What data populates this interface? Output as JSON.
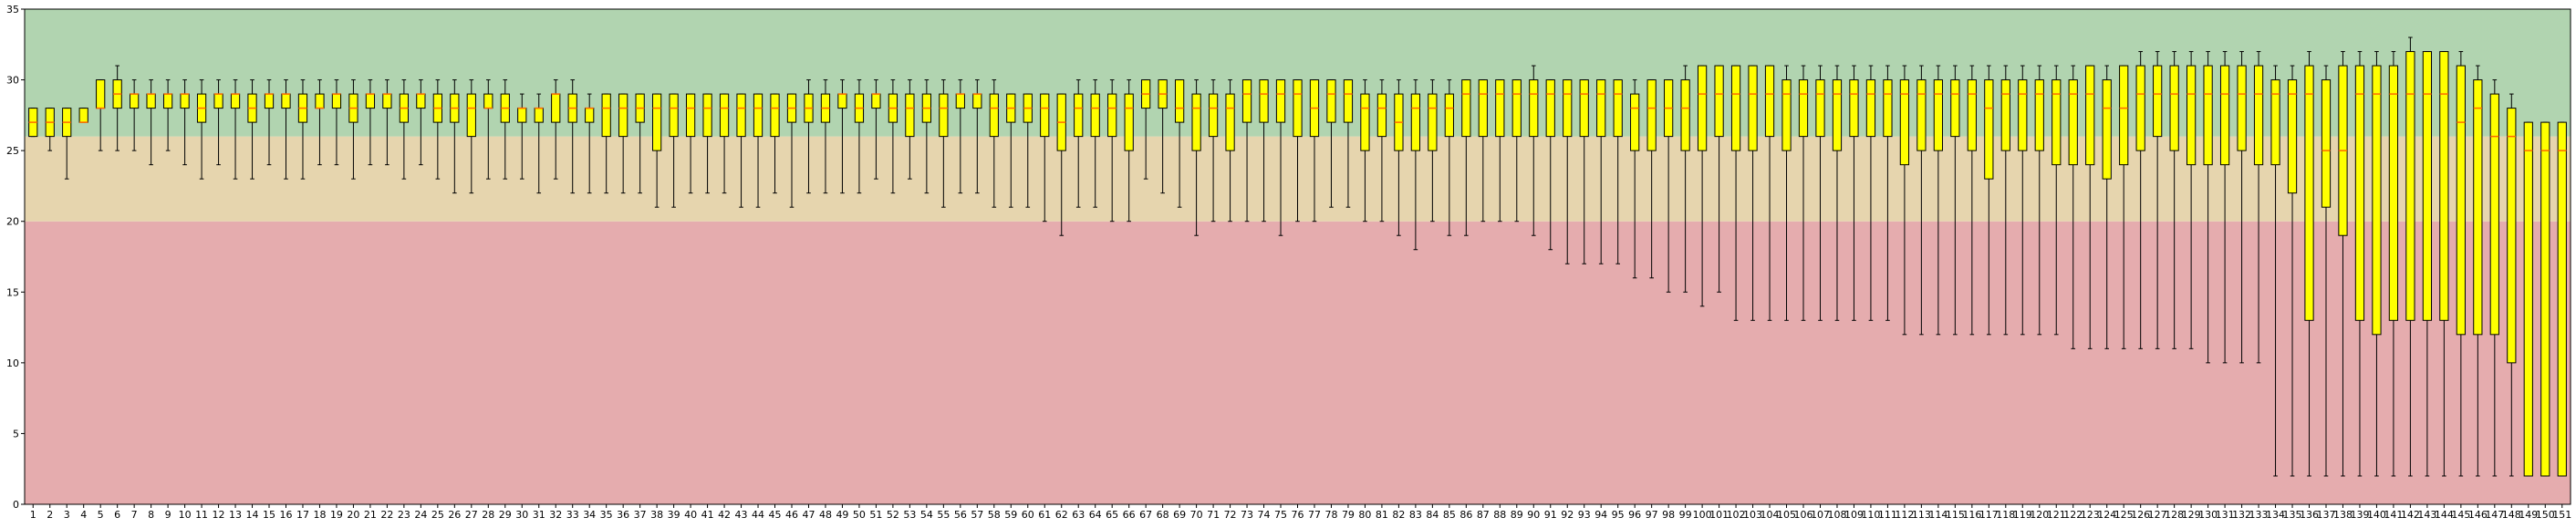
{
  "chart_data": {
    "type": "box",
    "title": "",
    "xlabel": "",
    "ylabel": "",
    "ylim": [
      0,
      35
    ],
    "yticks": [
      0,
      5,
      10,
      15,
      20,
      25,
      30,
      35
    ],
    "grid": false,
    "legend": "none",
    "bands": [
      {
        "from": 0,
        "to": 20,
        "color": "#e5acae"
      },
      {
        "from": 20,
        "to": 26,
        "color": "#e6d5ae"
      },
      {
        "from": 26,
        "to": 35,
        "color": "#b1d4b0"
      }
    ],
    "colors": {
      "box_fill": "#ffff00",
      "box_edge": "#000000",
      "median": "#ff6a00",
      "whisker": "#000000"
    },
    "categories": [
      "1",
      "2",
      "3",
      "4",
      "5",
      "6",
      "7",
      "8",
      "9",
      "10",
      "11",
      "12",
      "13",
      "14",
      "15",
      "16",
      "17",
      "18",
      "19",
      "20",
      "21",
      "22",
      "23",
      "24",
      "25",
      "26",
      "27",
      "28",
      "29",
      "30",
      "31",
      "32",
      "33",
      "34",
      "35",
      "36",
      "37",
      "38",
      "39",
      "40",
      "41",
      "42",
      "43",
      "44",
      "45",
      "46",
      "47",
      "48",
      "49",
      "50",
      "51",
      "52",
      "53",
      "54",
      "55",
      "56",
      "57",
      "58",
      "59",
      "60",
      "61",
      "62",
      "63",
      "64",
      "65",
      "66",
      "67",
      "68",
      "69",
      "70",
      "71",
      "72",
      "73",
      "74",
      "75",
      "76",
      "77",
      "78",
      "79",
      "80",
      "81",
      "82",
      "83",
      "84",
      "85",
      "86",
      "87",
      "88",
      "89",
      "90",
      "91",
      "92",
      "93",
      "94",
      "95",
      "96",
      "97",
      "98",
      "99",
      "100",
      "101",
      "102",
      "103",
      "104",
      "105",
      "106",
      "107",
      "108",
      "109",
      "110",
      "111",
      "112",
      "113",
      "114",
      "115",
      "116",
      "117",
      "118",
      "119",
      "120",
      "121",
      "122",
      "123",
      "124",
      "125",
      "126",
      "127",
      "128",
      "129",
      "130",
      "131",
      "132",
      "133",
      "134",
      "135",
      "136",
      "137",
      "138",
      "139",
      "140",
      "141",
      "142",
      "143",
      "144",
      "145",
      "146",
      "147",
      "148",
      "149",
      "150",
      "151"
    ],
    "boxes": [
      [
        26,
        26,
        27,
        28,
        28
      ],
      [
        25,
        26,
        27,
        28,
        28
      ],
      [
        23,
        26,
        27,
        28,
        28
      ],
      [
        27,
        27,
        27,
        28,
        28
      ],
      [
        25,
        28,
        28,
        30,
        30
      ],
      [
        25,
        28,
        29,
        30,
        31
      ],
      [
        25,
        28,
        29,
        29,
        30
      ],
      [
        24,
        28,
        29,
        29,
        30
      ],
      [
        25,
        28,
        29,
        29,
        30
      ],
      [
        24,
        28,
        29,
        29,
        30
      ],
      [
        23,
        27,
        28,
        29,
        30
      ],
      [
        24,
        28,
        29,
        29,
        30
      ],
      [
        23,
        28,
        29,
        29,
        30
      ],
      [
        23,
        27,
        28,
        29,
        30
      ],
      [
        24,
        28,
        29,
        29,
        30
      ],
      [
        23,
        28,
        29,
        29,
        30
      ],
      [
        23,
        27,
        28,
        29,
        30
      ],
      [
        24,
        28,
        28,
        29,
        30
      ],
      [
        24,
        28,
        29,
        29,
        30
      ],
      [
        23,
        27,
        28,
        29,
        30
      ],
      [
        24,
        28,
        29,
        29,
        30
      ],
      [
        24,
        28,
        29,
        29,
        30
      ],
      [
        23,
        27,
        28,
        29,
        30
      ],
      [
        24,
        28,
        29,
        29,
        30
      ],
      [
        23,
        27,
        28,
        29,
        30
      ],
      [
        22,
        27,
        28,
        29,
        30
      ],
      [
        22,
        26,
        28,
        29,
        30
      ],
      [
        23,
        28,
        28,
        29,
        30
      ],
      [
        23,
        27,
        28,
        29,
        30
      ],
      [
        23,
        27,
        28,
        28,
        29
      ],
      [
        22,
        27,
        28,
        28,
        29
      ],
      [
        23,
        27,
        29,
        29,
        30
      ],
      [
        22,
        27,
        28,
        29,
        30
      ],
      [
        22,
        27,
        28,
        28,
        29
      ],
      [
        22,
        26,
        28,
        29,
        29
      ],
      [
        22,
        26,
        28,
        29,
        29
      ],
      [
        22,
        27,
        28,
        29,
        29
      ],
      [
        21,
        25,
        28,
        29,
        29
      ],
      [
        21,
        26,
        28,
        29,
        29
      ],
      [
        22,
        26,
        28,
        29,
        29
      ],
      [
        22,
        26,
        28,
        29,
        29
      ],
      [
        22,
        26,
        28,
        29,
        29
      ],
      [
        21,
        26,
        28,
        29,
        29
      ],
      [
        21,
        26,
        28,
        29,
        29
      ],
      [
        22,
        26,
        28,
        29,
        29
      ],
      [
        21,
        27,
        28,
        29,
        29
      ],
      [
        22,
        27,
        28,
        29,
        30
      ],
      [
        22,
        27,
        28,
        29,
        30
      ],
      [
        22,
        28,
        29,
        29,
        30
      ],
      [
        22,
        27,
        28,
        29,
        30
      ],
      [
        23,
        28,
        29,
        29,
        30
      ],
      [
        22,
        27,
        28,
        29,
        30
      ],
      [
        23,
        26,
        28,
        29,
        30
      ],
      [
        22,
        27,
        28,
        29,
        30
      ],
      [
        21,
        26,
        28,
        29,
        30
      ],
      [
        22,
        28,
        29,
        29,
        30
      ],
      [
        22,
        28,
        29,
        29,
        30
      ],
      [
        21,
        26,
        28,
        29,
        30
      ],
      [
        21,
        27,
        28,
        29,
        29
      ],
      [
        21,
        27,
        28,
        29,
        29
      ],
      [
        20,
        26,
        28,
        29,
        29
      ],
      [
        19,
        25,
        27,
        29,
        29
      ],
      [
        21,
        26,
        28,
        29,
        30
      ],
      [
        21,
        26,
        28,
        29,
        30
      ],
      [
        20,
        26,
        28,
        29,
        30
      ],
      [
        20,
        25,
        28,
        29,
        30
      ],
      [
        23,
        28,
        29,
        30,
        30
      ],
      [
        22,
        28,
        29,
        30,
        30
      ],
      [
        21,
        27,
        28,
        30,
        30
      ],
      [
        19,
        25,
        28,
        29,
        30
      ],
      [
        20,
        26,
        28,
        29,
        30
      ],
      [
        20,
        25,
        28,
        29,
        30
      ],
      [
        20,
        27,
        29,
        30,
        30
      ],
      [
        20,
        27,
        29,
        30,
        30
      ],
      [
        19,
        27,
        29,
        30,
        30
      ],
      [
        20,
        26,
        29,
        30,
        30
      ],
      [
        20,
        26,
        28,
        30,
        30
      ],
      [
        21,
        27,
        29,
        30,
        30
      ],
      [
        21,
        27,
        29,
        30,
        30
      ],
      [
        20,
        25,
        28,
        29,
        30
      ],
      [
        20,
        26,
        28,
        29,
        30
      ],
      [
        19,
        25,
        27,
        29,
        30
      ],
      [
        18,
        25,
        28,
        29,
        30
      ],
      [
        20,
        25,
        28,
        29,
        30
      ],
      [
        19,
        26,
        28,
        29,
        30
      ],
      [
        19,
        26,
        29,
        30,
        30
      ],
      [
        20,
        26,
        29,
        30,
        30
      ],
      [
        20,
        26,
        29,
        30,
        30
      ],
      [
        20,
        26,
        29,
        30,
        30
      ],
      [
        19,
        26,
        29,
        30,
        31
      ],
      [
        18,
        26,
        29,
        30,
        30
      ],
      [
        17,
        26,
        29,
        30,
        30
      ],
      [
        17,
        26,
        29,
        30,
        30
      ],
      [
        17,
        26,
        29,
        30,
        30
      ],
      [
        17,
        26,
        29,
        30,
        30
      ],
      [
        16,
        25,
        28,
        29,
        30
      ],
      [
        16,
        25,
        28,
        30,
        30
      ],
      [
        15,
        26,
        28,
        30,
        30
      ],
      [
        15,
        25,
        28,
        30,
        31
      ],
      [
        14,
        25,
        29,
        31,
        31
      ],
      [
        15,
        26,
        29,
        31,
        31
      ],
      [
        13,
        25,
        29,
        31,
        31
      ],
      [
        13,
        25,
        29,
        31,
        31
      ],
      [
        13,
        26,
        29,
        31,
        31
      ],
      [
        13,
        25,
        29,
        30,
        31
      ],
      [
        13,
        26,
        29,
        30,
        31
      ],
      [
        13,
        26,
        29,
        30,
        31
      ],
      [
        13,
        25,
        29,
        30,
        31
      ],
      [
        13,
        26,
        29,
        30,
        31
      ],
      [
        13,
        26,
        29,
        30,
        31
      ],
      [
        13,
        26,
        29,
        30,
        31
      ],
      [
        12,
        24,
        29,
        30,
        31
      ],
      [
        12,
        25,
        29,
        30,
        31
      ],
      [
        12,
        25,
        29,
        30,
        31
      ],
      [
        12,
        26,
        29,
        30,
        31
      ],
      [
        12,
        25,
        29,
        30,
        31
      ],
      [
        12,
        23,
        28,
        30,
        31
      ],
      [
        12,
        25,
        29,
        30,
        31
      ],
      [
        12,
        25,
        29,
        30,
        31
      ],
      [
        12,
        25,
        29,
        30,
        31
      ],
      [
        12,
        24,
        29,
        30,
        31
      ],
      [
        11,
        24,
        29,
        30,
        31
      ],
      [
        11,
        24,
        29,
        31,
        31
      ],
      [
        11,
        23,
        28,
        30,
        31
      ],
      [
        11,
        24,
        28,
        31,
        31
      ],
      [
        11,
        25,
        29,
        31,
        32
      ],
      [
        11,
        26,
        29,
        31,
        32
      ],
      [
        11,
        25,
        29,
        31,
        32
      ],
      [
        11,
        24,
        29,
        31,
        32
      ],
      [
        10,
        24,
        29,
        31,
        32
      ],
      [
        10,
        24,
        29,
        31,
        32
      ],
      [
        10,
        25,
        29,
        31,
        32
      ],
      [
        10,
        24,
        29,
        31,
        32
      ],
      [
        2,
        24,
        29,
        30,
        31
      ],
      [
        2,
        22,
        29,
        30,
        31
      ],
      [
        2,
        13,
        29,
        31,
        32
      ],
      [
        2,
        21,
        25,
        30,
        31
      ],
      [
        2,
        19,
        25,
        31,
        32
      ],
      [
        2,
        13,
        29,
        31,
        32
      ],
      [
        2,
        12,
        29,
        31,
        32
      ],
      [
        2,
        13,
        29,
        31,
        32
      ],
      [
        2,
        13,
        29,
        32,
        33
      ],
      [
        2,
        13,
        29,
        32,
        32
      ],
      [
        2,
        13,
        29,
        32,
        32
      ],
      [
        2,
        12,
        27,
        31,
        32
      ],
      [
        2,
        12,
        28,
        30,
        31
      ],
      [
        2,
        12,
        26,
        29,
        30
      ],
      [
        2,
        10,
        26,
        28,
        29
      ],
      [
        2,
        2,
        25,
        27,
        27
      ],
      [
        2,
        2,
        25,
        27,
        27
      ],
      [
        2,
        2,
        25,
        27,
        27
      ]
    ]
  }
}
